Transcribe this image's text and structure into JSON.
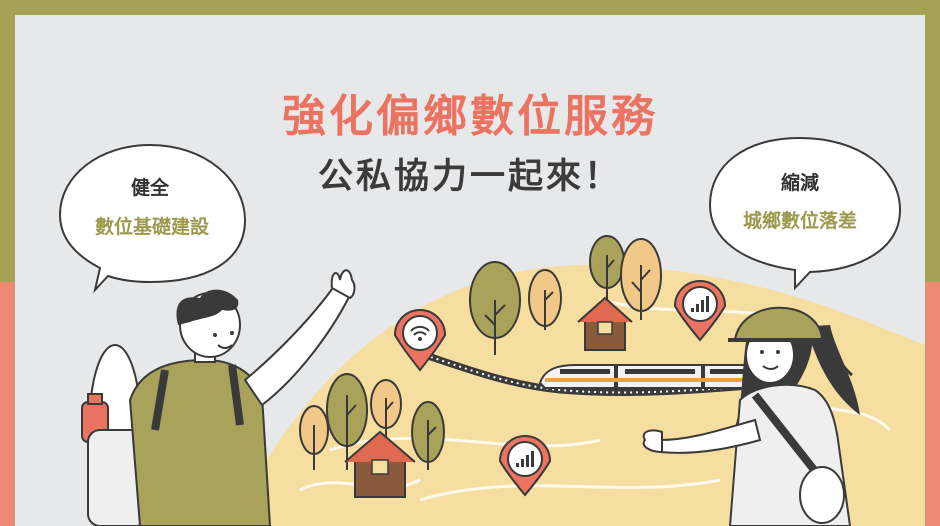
{
  "title": "強化偏鄉數位服務",
  "subtitle": "公私協力一起來！",
  "bubble_left": {
    "line1": "健全",
    "line2": "數位基礎建設"
  },
  "bubble_right": {
    "line1": "縮減",
    "line2": "城鄉數位落差"
  },
  "colors": {
    "olive": "#a5a255",
    "salmon": "#ee8a74",
    "background": "#e7e8ea",
    "hill": "#f6dea0",
    "title": "#ea7461",
    "accent_text": "#9d9a4f"
  },
  "icons": [
    "wifi-icon",
    "signal-icon",
    "house-icon",
    "train-icon",
    "tree-icon",
    "bottle-icon"
  ]
}
